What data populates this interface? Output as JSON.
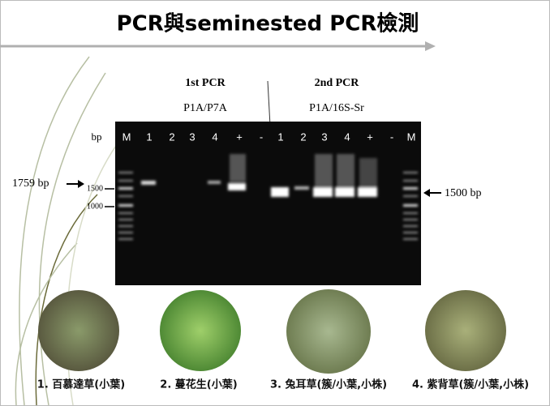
{
  "header": {
    "title": "PCR與seminested PCR檢測"
  },
  "gel": {
    "groups": [
      {
        "name": "1st PCR",
        "primers": "P1A/P7A"
      },
      {
        "name": "2nd PCR",
        "primers": "P1A/16S-Sr"
      }
    ],
    "unit": "bp",
    "lanes": [
      "M",
      "1",
      "2",
      "3",
      "4",
      "+",
      "-",
      "1",
      "2",
      "3",
      "4",
      "+",
      "-",
      "M"
    ],
    "left_marker": "1759 bp",
    "ladder_labels": [
      "1500",
      "1000"
    ],
    "right_marker": "1500 bp"
  },
  "samples": [
    {
      "caption": "1. 百慕達草(小葉)"
    },
    {
      "caption": "2. 蔓花生(小葉)"
    },
    {
      "caption": "3. 兔耳草(簇/小葉,小株)"
    },
    {
      "caption": "4. 紫背草(簇/小葉,小株)"
    }
  ]
}
